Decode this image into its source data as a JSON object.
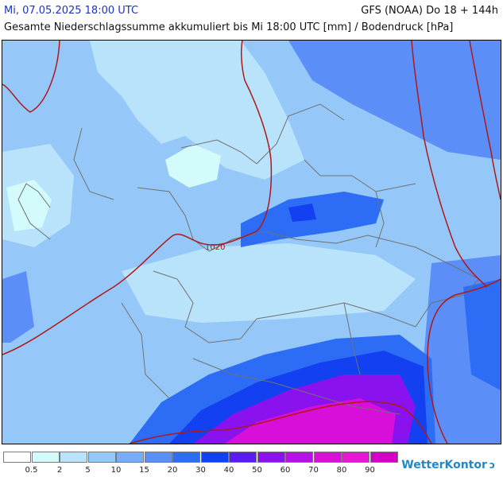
{
  "header": {
    "date_label": "Mi, 07.05.2025 18:00 UTC",
    "model_label": "GFS (NOAA) Do 18 + 144h",
    "title": "Gesamte Niederschlagssumme akkumuliert bis Mi 18:00 UTC [mm] / Bodendruck [hPa]"
  },
  "map": {
    "isobar_label": "1020",
    "isobar_color": "#b01818",
    "border_color": "#707070"
  },
  "legend": {
    "labels": [
      "0.5",
      "2",
      "5",
      "10",
      "15",
      "20",
      "30",
      "40",
      "50",
      "60",
      "70",
      "80",
      "90"
    ],
    "colors": [
      "#ffffff",
      "#d4fbfb",
      "#b8e3fb",
      "#95c8f9",
      "#78acf8",
      "#5b8ff7",
      "#2d6df5",
      "#1340f0",
      "#5a1cf0",
      "#8a12ee",
      "#b80ee7",
      "#d80fd8",
      "#e915d9",
      "#d400c8"
    ]
  },
  "brand": {
    "name": "WetterKontor",
    "icon": "swirl-logo-icon"
  }
}
